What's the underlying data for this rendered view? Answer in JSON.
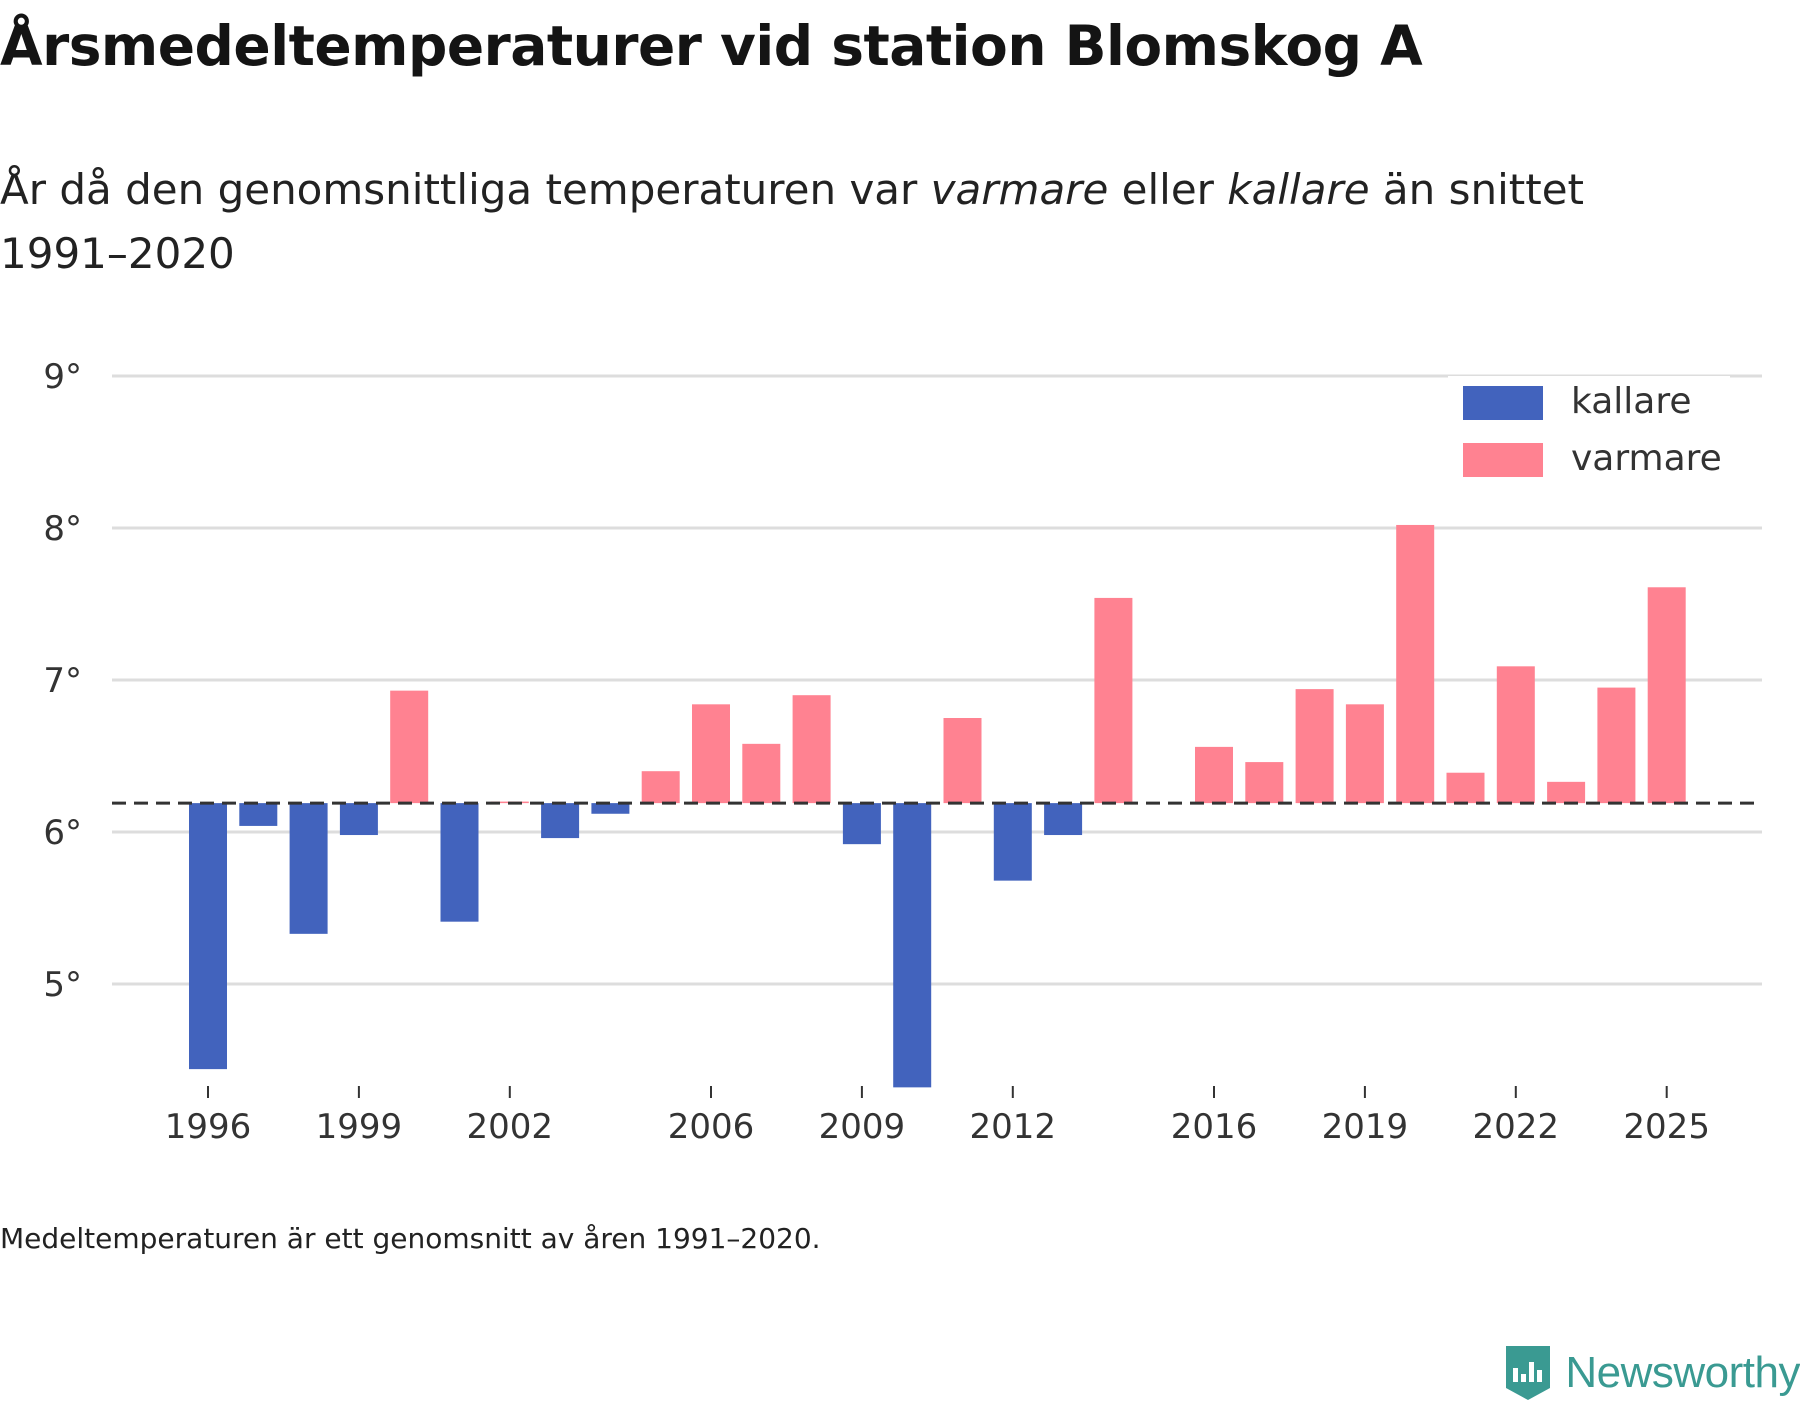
{
  "title": "Årsmedeltemperaturer vid station Blomskog A",
  "subtitle": {
    "part1": "År då den genomsnittliga temperaturen var ",
    "warm_word": "varmare",
    "part2": " eller ",
    "cold_word": "kallare",
    "part3": " än snittet 1991–2020"
  },
  "footnote": "Medeltemperaturen är ett genomsnitt av åren 1991–2020.",
  "brand": {
    "name": "Newsworthy",
    "color": "#3a9a92"
  },
  "colors": {
    "cold": "#4263bd",
    "warm": "#ff8291",
    "grid": "#dddddd",
    "baseline": "#333333",
    "text": "#333333"
  },
  "chart_data": {
    "type": "bar",
    "title": "Årsmedeltemperaturer vid station Blomskog A",
    "xlabel": "",
    "ylabel": "",
    "baseline": 6.19,
    "ylim": [
      4.3,
      9.1
    ],
    "yticks": [
      5,
      6,
      7,
      8,
      9
    ],
    "ytick_suffix": "°",
    "xticks": [
      1996,
      1999,
      2002,
      2006,
      2009,
      2012,
      2016,
      2019,
      2022,
      2025
    ],
    "legend": {
      "position": "top-right",
      "entries": [
        {
          "key": "cold",
          "label": "kallare"
        },
        {
          "key": "warm",
          "label": "varmare"
        }
      ]
    },
    "years": [
      1996,
      1997,
      1998,
      1999,
      2000,
      2001,
      2002,
      2003,
      2004,
      2005,
      2006,
      2007,
      2008,
      2009,
      2010,
      2011,
      2012,
      2013,
      2014,
      2015,
      2016,
      2017,
      2018,
      2019,
      2020,
      2021,
      2022,
      2023,
      2024,
      2025
    ],
    "values": [
      4.44,
      6.04,
      5.33,
      5.98,
      6.93,
      5.41,
      6.2,
      5.96,
      6.12,
      6.4,
      6.84,
      6.58,
      6.9,
      5.92,
      4.32,
      6.75,
      5.68,
      5.98,
      7.54,
      null,
      6.56,
      6.46,
      6.94,
      6.84,
      8.02,
      6.39,
      7.09,
      6.33,
      6.95,
      7.61
    ]
  }
}
